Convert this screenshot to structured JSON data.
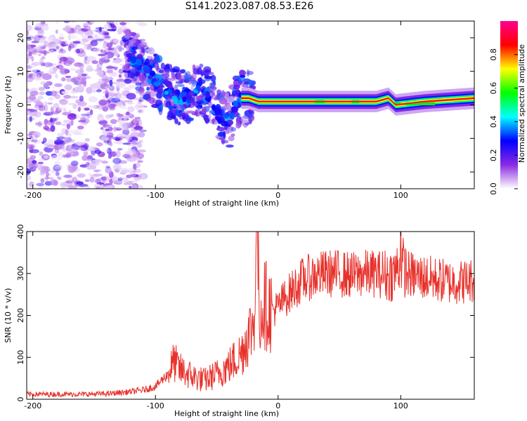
{
  "title": "S141.2023.087.08.53.E26",
  "chart_data": [
    {
      "type": "heatmap",
      "xlabel": "Height of straight line (km)",
      "ylabel": "Frequency (Hz)",
      "xlim": [
        -205,
        160
      ],
      "ylim": [
        -25,
        25
      ],
      "xticks": [
        -200,
        -100,
        0,
        100
      ],
      "yticks": [
        -20,
        -10,
        0,
        10,
        20
      ],
      "colorbar": {
        "label": "Normalized spectral amplitude",
        "range": [
          0,
          1
        ],
        "ticks": [
          "0.0",
          "0.2",
          "0.4",
          "0.6",
          "0.8"
        ],
        "colors": [
          "#ffffff",
          "#8a2be2",
          "#0000ff",
          "#00ffff",
          "#00ff00",
          "#ffff00",
          "#ff0000",
          "#ff0090"
        ]
      },
      "ridge": [
        {
          "x": -120,
          "y": 14
        },
        {
          "x": -112,
          "y": 12
        },
        {
          "x": -104,
          "y": 9
        },
        {
          "x": -96,
          "y": 6
        },
        {
          "x": -88,
          "y": 4
        },
        {
          "x": -80,
          "y": 2
        },
        {
          "x": -72,
          "y": 3
        },
        {
          "x": -64,
          "y": 6
        },
        {
          "x": -56,
          "y": 2
        },
        {
          "x": -48,
          "y": -3
        },
        {
          "x": -40,
          "y": -5
        },
        {
          "x": -32,
          "y": 2
        },
        {
          "x": -24,
          "y": 2
        },
        {
          "x": -16,
          "y": 1
        },
        {
          "x": 0,
          "y": 1
        },
        {
          "x": 40,
          "y": 1
        },
        {
          "x": 80,
          "y": 1
        },
        {
          "x": 90,
          "y": 2
        },
        {
          "x": 96,
          "y": 0
        },
        {
          "x": 120,
          "y": 1
        },
        {
          "x": 160,
          "y": 2
        }
      ]
    },
    {
      "type": "line",
      "xlabel": "Height of straight line (km)",
      "ylabel": "SNR (10 * v/v)",
      "xlim": [
        -205,
        160
      ],
      "ylim": [
        0,
        400
      ],
      "xticks": [
        -200,
        -100,
        0,
        100
      ],
      "yticks": [
        0,
        100,
        200,
        300,
        400
      ],
      "line_color": "#e8312b",
      "series": [
        {
          "x": [
            -205,
            -180,
            -160,
            -140,
            -120,
            -110,
            -100,
            -90,
            -85,
            -80,
            -70,
            -60,
            -50,
            -40,
            -30,
            -25,
            -20,
            -17,
            -15,
            -12,
            -8,
            -5,
            0,
            5,
            10,
            20,
            30,
            40,
            50,
            60,
            70,
            80,
            90,
            95,
            100,
            105,
            110,
            120,
            130,
            140,
            150,
            160
          ],
          "y": [
            12,
            12,
            12,
            13,
            18,
            22,
            30,
            60,
            90,
            70,
            55,
            45,
            60,
            80,
            110,
            150,
            180,
            380,
            200,
            230,
            220,
            210,
            220,
            240,
            255,
            285,
            295,
            300,
            300,
            295,
            300,
            300,
            295,
            300,
            330,
            300,
            295,
            290,
            285,
            280,
            280,
            285
          ]
        }
      ]
    }
  ]
}
